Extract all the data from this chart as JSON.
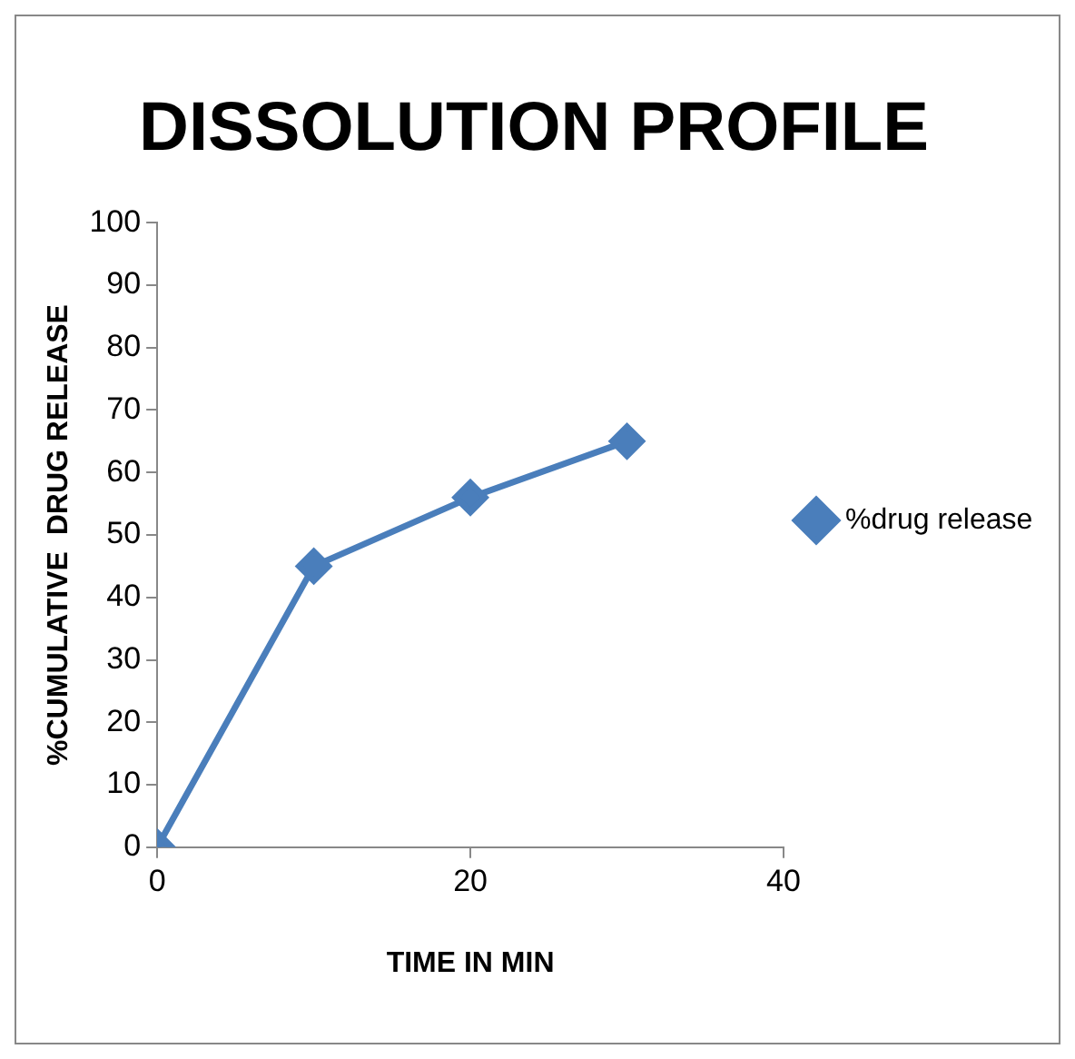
{
  "chart_data": {
    "type": "line",
    "title": "DISSOLUTION PROFILE",
    "xlabel": "TIME IN MIN",
    "ylabel": "%CUMULATIVE  DRUG RELEASE",
    "x": [
      0,
      10,
      20,
      30
    ],
    "series": [
      {
        "name": "%drug release",
        "color": "#4a7ebb",
        "values": [
          0,
          45,
          56,
          65
        ]
      }
    ],
    "xlim": [
      0,
      40
    ],
    "xticks": [
      0,
      20,
      40
    ],
    "ylim": [
      0,
      100
    ],
    "yticks": [
      0,
      10,
      20,
      30,
      40,
      50,
      60,
      70,
      80,
      90,
      100
    ],
    "grid": false,
    "legend": "right",
    "marker": "diamond",
    "line_style": "solid"
  }
}
